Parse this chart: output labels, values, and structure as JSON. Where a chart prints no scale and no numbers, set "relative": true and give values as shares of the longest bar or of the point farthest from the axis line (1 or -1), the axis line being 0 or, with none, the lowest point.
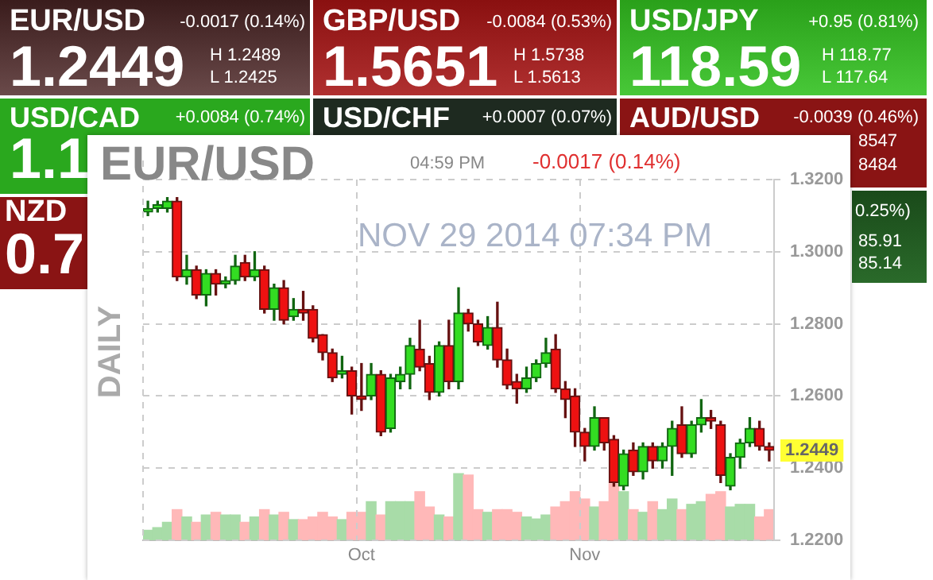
{
  "chart_data": [
    {
      "type": "other",
      "annotations": [
        "EUR/USD",
        "-0.0017 (0.14%)",
        "1.2449",
        "H 1.2489",
        "L 1.2425",
        "GBP/USD",
        "-0.0084 (0.53%)",
        "1.5651",
        "H 1.5738",
        "L 1.5613",
        "USD/JPY",
        "+0.95 (0.81%)",
        "118.59",
        "H 118.77",
        "L 117.64",
        "USD/CAD",
        "+0.0084 (0.74%)",
        "USD/CHF",
        "+0.0007 (0.07%)",
        "AUD/USD",
        "-0.0039 (0.46%)",
        "1.1",
        "NZD",
        "0.7",
        "8547",
        "8484",
        "0.25%)",
        "85.91",
        "85.14"
      ]
    },
    {
      "type": "candlestick",
      "title": "EUR/USD",
      "ylabel": "DAILY",
      "grid": true,
      "annotations": [
        "04:59 PM",
        "-0.0017 (0.14%)",
        "NOV 29 2014 07:34 PM",
        "1.2449"
      ],
      "categories": [
        null,
        null,
        null,
        null,
        null,
        null,
        null,
        null,
        null,
        null,
        null,
        null,
        null,
        null,
        null,
        null,
        null,
        null,
        null,
        null,
        null,
        null,
        "Oct",
        null,
        null,
        null,
        null,
        null,
        null,
        null,
        null,
        null,
        null,
        null,
        null,
        null,
        null,
        null,
        null,
        null,
        null,
        null,
        null,
        null,
        null,
        "Nov",
        null,
        null,
        null,
        null,
        null,
        null,
        null,
        null,
        null,
        null,
        null,
        null,
        null,
        null,
        null,
        null,
        null,
        null,
        null
      ],
      "ylim": [
        1.22,
        1.32
      ],
      "yticks": [
        {
          "value": 1.22,
          "label": "1.2200"
        },
        {
          "value": 1.24,
          "label": "1.2400"
        },
        {
          "value": 1.26,
          "label": "1.2600"
        },
        {
          "value": 1.28,
          "label": "1.2800"
        },
        {
          "value": 1.3,
          "label": "1.3000"
        },
        {
          "value": 1.32,
          "label": "1.3200"
        }
      ],
      "ohlc": [
        [
          1.311,
          1.314,
          1.31,
          1.312
        ],
        [
          1.312,
          1.314,
          1.311,
          1.313
        ],
        [
          1.312,
          1.315,
          1.311,
          1.314
        ],
        [
          1.314,
          1.315,
          1.292,
          1.293
        ],
        [
          1.293,
          1.299,
          1.291,
          1.295
        ],
        [
          1.295,
          1.296,
          1.287,
          1.288
        ],
        [
          1.288,
          1.295,
          1.285,
          1.294
        ],
        [
          1.294,
          1.295,
          1.288,
          1.291
        ],
        [
          1.291,
          1.293,
          1.29,
          1.292
        ],
        [
          1.292,
          1.299,
          1.291,
          1.296
        ],
        [
          1.297,
          1.299,
          1.292,
          1.293
        ],
        [
          1.293,
          1.3,
          1.292,
          1.295
        ],
        [
          1.295,
          1.296,
          1.283,
          1.284
        ],
        [
          1.284,
          1.291,
          1.281,
          1.29
        ],
        [
          1.29,
          1.292,
          1.28,
          1.281
        ],
        [
          1.282,
          1.287,
          1.281,
          1.284
        ],
        [
          1.284,
          1.289,
          1.281,
          1.283
        ],
        [
          1.284,
          1.285,
          1.275,
          1.276
        ],
        [
          1.277,
          1.277,
          1.27,
          1.272
        ],
        [
          1.272,
          1.273,
          1.264,
          1.265
        ],
        [
          1.266,
          1.271,
          1.265,
          1.267
        ],
        [
          1.267,
          1.268,
          1.255,
          1.26
        ],
        [
          1.26,
          1.269,
          1.256,
          1.259
        ],
        [
          1.26,
          1.269,
          1.259,
          1.266
        ],
        [
          1.266,
          1.267,
          1.249,
          1.25
        ],
        [
          1.251,
          1.266,
          1.25,
          1.265
        ],
        [
          1.264,
          1.268,
          1.262,
          1.266
        ],
        [
          1.266,
          1.276,
          1.262,
          1.274
        ],
        [
          1.273,
          1.281,
          1.267,
          1.268
        ],
        [
          1.269,
          1.271,
          1.259,
          1.261
        ],
        [
          1.261,
          1.275,
          1.26,
          1.274
        ],
        [
          1.274,
          1.281,
          1.262,
          1.264
        ],
        [
          1.264,
          1.29,
          1.262,
          1.283
        ],
        [
          1.283,
          1.284,
          1.278,
          1.28
        ],
        [
          1.28,
          1.281,
          1.274,
          1.275
        ],
        [
          1.274,
          1.282,
          1.273,
          1.279
        ],
        [
          1.279,
          1.286,
          1.268,
          1.27
        ],
        [
          1.27,
          1.273,
          1.262,
          1.263
        ],
        [
          1.264,
          1.266,
          1.258,
          1.262
        ],
        [
          1.262,
          1.268,
          1.261,
          1.265
        ],
        [
          1.265,
          1.27,
          1.264,
          1.269
        ],
        [
          1.269,
          1.276,
          1.268,
          1.272
        ],
        [
          1.273,
          1.277,
          1.261,
          1.262
        ],
        [
          1.262,
          1.264,
          1.254,
          1.259
        ],
        [
          1.26,
          1.262,
          1.246,
          1.25
        ],
        [
          1.25,
          1.251,
          1.242,
          1.246
        ],
        [
          1.246,
          1.257,
          1.245,
          1.254
        ],
        [
          1.254,
          1.254,
          1.245,
          1.247
        ],
        [
          1.248,
          1.249,
          1.235,
          1.236
        ],
        [
          1.235,
          1.245,
          1.234,
          1.244
        ],
        [
          1.245,
          1.247,
          1.238,
          1.239
        ],
        [
          1.239,
          1.247,
          1.237,
          1.246
        ],
        [
          1.246,
          1.247,
          1.24,
          1.242
        ],
        [
          1.242,
          1.247,
          1.24,
          1.246
        ],
        [
          1.246,
          1.253,
          1.238,
          1.251
        ],
        [
          1.252,
          1.257,
          1.243,
          1.244
        ],
        [
          1.244,
          1.253,
          1.243,
          1.252
        ],
        [
          1.252,
          1.259,
          1.25,
          1.254
        ],
        [
          1.254,
          1.256,
          1.251,
          1.253
        ],
        [
          1.252,
          1.253,
          1.236,
          1.238
        ],
        [
          1.235,
          1.244,
          1.234,
          1.243
        ],
        [
          1.243,
          1.248,
          1.24,
          1.247
        ],
        [
          1.247,
          1.254,
          1.246,
          1.251
        ],
        [
          1.251,
          1.253,
          1.245,
          1.246
        ],
        [
          1.246,
          1.247,
          1.242,
          1.2449
        ]
      ]
    },
    {
      "type": "bar",
      "relative": true,
      "categories": [
        null,
        null,
        null,
        null,
        null,
        null,
        null,
        null,
        null,
        null,
        null,
        null,
        null,
        null,
        null,
        null,
        null,
        null,
        null,
        null,
        null,
        null,
        null,
        null,
        null,
        null,
        null,
        null,
        null,
        null,
        null,
        null,
        null,
        null,
        null,
        null,
        null,
        null,
        null,
        null,
        null,
        null,
        null,
        null,
        null,
        null,
        null,
        null,
        null,
        null,
        null,
        null,
        null,
        null,
        null,
        null,
        null,
        null,
        null,
        null,
        null,
        null,
        null,
        null,
        null
      ],
      "values": [
        0.15,
        0.19,
        0.27,
        0.46,
        0.35,
        0.27,
        0.38,
        0.42,
        0.38,
        0.38,
        0.27,
        0.35,
        0.46,
        0.38,
        0.42,
        0.31,
        0.31,
        0.35,
        0.42,
        0.35,
        0.31,
        0.42,
        0.42,
        0.58,
        0.38,
        0.58,
        0.58,
        0.58,
        0.73,
        0.5,
        0.38,
        0.35,
        1,
        0.98,
        0.46,
        0.42,
        0.46,
        0.46,
        0.42,
        0.35,
        0.32,
        0.38,
        0.5,
        0.58,
        0.73,
        0.62,
        0.5,
        0.58,
        0.85,
        0.73,
        0.46,
        0.42,
        0.58,
        0.46,
        0.62,
        0.46,
        0.54,
        0.58,
        0.69,
        0.73,
        0.5,
        0.54,
        0.54,
        0.35,
        0.46
      ],
      "colors": [
        "#a8dca8",
        "#a8dca8",
        "#a8dca8",
        "#ffb8b8",
        "#a8dca8",
        "#ffb8b8",
        "#a8dca8",
        "#ffb8b8",
        "#a8dca8",
        "#a8dca8",
        "#ffb8b8",
        "#a8dca8",
        "#ffb8b8",
        "#a8dca8",
        "#ffb8b8",
        "#a8dca8",
        "#ffb8b8",
        "#ffb8b8",
        "#ffb8b8",
        "#ffb8b8",
        "#a8dca8",
        "#ffb8b8",
        "#ffb8b8",
        "#a8dca8",
        "#ffb8b8",
        "#a8dca8",
        "#a8dca8",
        "#a8dca8",
        "#ffb8b8",
        "#ffb8b8",
        "#a8dca8",
        "#ffb8b8",
        "#a8dca8",
        "#ffb8b8",
        "#ffb8b8",
        "#a8dca8",
        "#ffb8b8",
        "#ffb8b8",
        "#ffb8b8",
        "#a8dca8",
        "#a8dca8",
        "#a8dca8",
        "#ffb8b8",
        "#ffb8b8",
        "#ffb8b8",
        "#ffb8b8",
        "#a8dca8",
        "#ffb8b8",
        "#ffb8b8",
        "#a8dca8",
        "#ffb8b8",
        "#a8dca8",
        "#ffb8b8",
        "#a8dca8",
        "#a8dca8",
        "#ffb8b8",
        "#a8dca8",
        "#a8dca8",
        "#ffb8b8",
        "#ffb8b8",
        "#a8dca8",
        "#a8dca8",
        "#a8dca8",
        "#ffb8b8",
        "#ffb8b8"
      ]
    }
  ]
}
